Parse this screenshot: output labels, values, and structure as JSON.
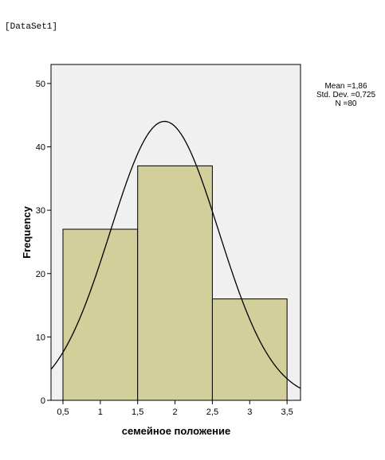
{
  "header": {
    "dataset_label": "[DataSet1]"
  },
  "chart_data": {
    "type": "bar",
    "subtype": "histogram",
    "bins": [
      {
        "from": 0.5,
        "to": 1.5,
        "value": 27
      },
      {
        "from": 1.5,
        "to": 2.5,
        "value": 37
      },
      {
        "from": 2.5,
        "to": 3.5,
        "value": 16
      }
    ],
    "xlabel": "семейное положение",
    "ylabel": "Frequency",
    "xlim": [
      0.34,
      3.68
    ],
    "ylim": [
      0,
      53
    ],
    "x_ticks": [
      "0,5",
      "1",
      "1,5",
      "2",
      "2,5",
      "3",
      "3,5"
    ],
    "x_tick_values": [
      0.5,
      1,
      1.5,
      2,
      2.5,
      3,
      3.5
    ],
    "y_ticks": [
      "0",
      "10",
      "20",
      "30",
      "40",
      "50"
    ],
    "y_tick_values": [
      0,
      10,
      20,
      30,
      40,
      50
    ],
    "stats": {
      "mean": "Mean =1,86",
      "std": "Std. Dev. =0,725",
      "n": "N =80"
    },
    "normal_curve": {
      "mean": 1.86,
      "std": 0.725,
      "n": 80,
      "bin_width": 1
    },
    "colors": {
      "bar_fill": "#d3cf9a",
      "plot_bg": "#f0f0f0",
      "curve": "#000000",
      "border": "#000000"
    }
  }
}
